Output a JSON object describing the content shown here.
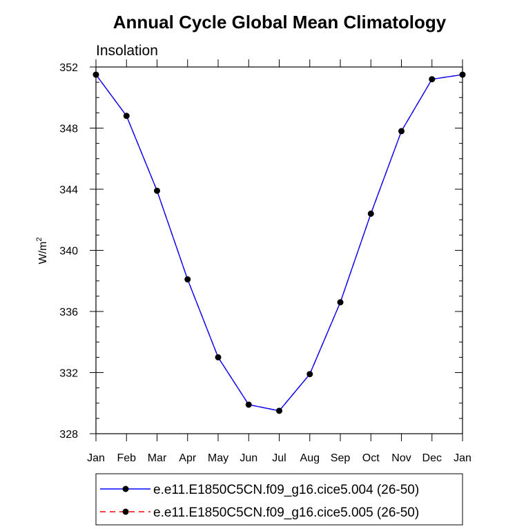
{
  "chart_data": {
    "type": "line",
    "title": "Annual Cycle Global Mean Climatology",
    "subtitle": "Insolation",
    "ylabel_base": "W/m",
    "ylabel_sup": "2",
    "xlabel": "",
    "ylim": [
      328,
      352
    ],
    "yticks": [
      "328",
      "332",
      "336",
      "340",
      "344",
      "348",
      "352"
    ],
    "categories": [
      "Jan",
      "Feb",
      "Mar",
      "Apr",
      "May",
      "Jun",
      "Jul",
      "Aug",
      "Sep",
      "Oct",
      "Nov",
      "Dec",
      "Jan"
    ],
    "series": [
      {
        "name": "e.e11.E1850C5CN.f09_g16.cice5.004 (26-50)",
        "color": "#0000ff",
        "line_style": "solid",
        "marker": "filled-circle",
        "values": [
          351.5,
          348.8,
          343.9,
          338.1,
          333.0,
          329.9,
          329.5,
          331.9,
          336.6,
          342.4,
          347.8,
          351.2,
          351.5
        ]
      },
      {
        "name": "e.e11.E1850C5CN.f09_g16.cice5.005 (26-50)",
        "color": "#ff0000",
        "line_style": "dashed",
        "marker": "filled-circle",
        "values": [
          351.5,
          348.8,
          343.9,
          338.1,
          333.0,
          329.9,
          329.5,
          331.9,
          336.6,
          342.4,
          347.8,
          351.2,
          351.5
        ]
      }
    ],
    "legend_position": "bottom-center"
  }
}
